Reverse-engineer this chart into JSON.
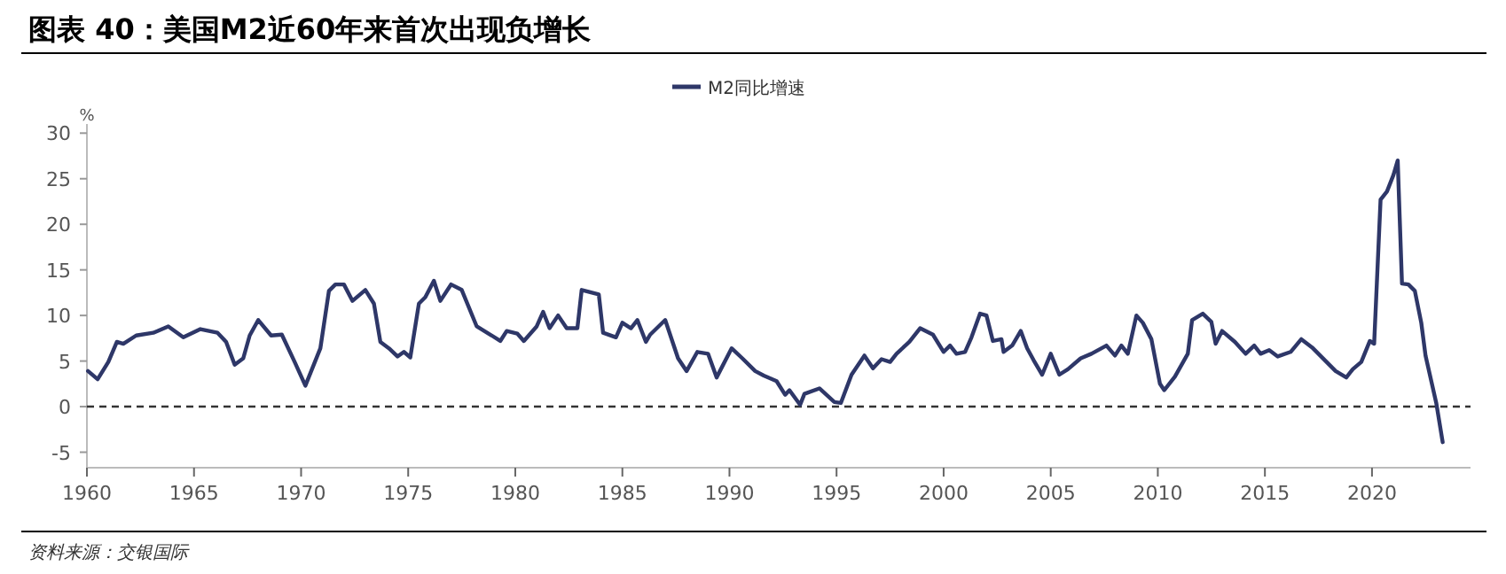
{
  "chart_data": {
    "type": "line",
    "title": "图表 40：美国M2近60年来首次出现负增长",
    "ylabel": "%",
    "annotations": [
      "资料来源：交银国际"
    ],
    "legend": "top",
    "grid": false,
    "line_style": "solid",
    "marker": "none",
    "xlim": [
      1960,
      2024.6
    ],
    "xticks": [
      1960,
      1965,
      1970,
      1975,
      1980,
      1985,
      1990,
      1995,
      2000,
      2005,
      2010,
      2015,
      2020
    ],
    "ylim": [
      -6.7,
      31
    ],
    "yticks": [
      -5,
      0,
      5,
      10,
      15,
      20,
      25,
      30
    ],
    "ref_lines": [
      {
        "axis": "y",
        "value": 0,
        "line_style": "dashed",
        "color": "#333333"
      }
    ],
    "series": [
      {
        "name": "M2同比增速",
        "color": "#2e3768",
        "x": [
          1960.05,
          1960.5,
          1961.0,
          1961.4,
          1961.7,
          1962.3,
          1963.1,
          1963.8,
          1964.5,
          1965.3,
          1966.1,
          1966.5,
          1966.9,
          1967.3,
          1967.6,
          1968.0,
          1968.6,
          1969.1,
          1969.7,
          1970.2,
          1970.9,
          1971.3,
          1971.6,
          1972.0,
          1972.4,
          1973.0,
          1973.4,
          1973.7,
          1974.1,
          1974.5,
          1974.8,
          1975.1,
          1975.5,
          1975.8,
          1976.2,
          1976.5,
          1977.0,
          1977.5,
          1978.2,
          1978.9,
          1979.3,
          1979.6,
          1980.1,
          1980.4,
          1981.0,
          1981.3,
          1981.6,
          1982.0,
          1982.4,
          1982.9,
          1983.1,
          1983.9,
          1984.1,
          1984.7,
          1985.0,
          1985.4,
          1985.7,
          1986.1,
          1986.3,
          1987.0,
          1987.6,
          1988.0,
          1988.5,
          1989.0,
          1989.4,
          1990.1,
          1990.6,
          1991.2,
          1991.6,
          1992.2,
          1992.6,
          1992.8,
          1993.3,
          1993.5,
          1994.2,
          1994.9,
          1995.2,
          1995.7,
          1996.3,
          1996.7,
          1997.1,
          1997.5,
          1997.8,
          1998.4,
          1998.9,
          1999.5,
          2000.0,
          2000.3,
          2000.6,
          2001.0,
          2001.3,
          2001.7,
          2002.0,
          2002.3,
          2002.7,
          2002.8,
          2003.2,
          2003.6,
          2003.9,
          2004.2,
          2004.6,
          2005.0,
          2005.4,
          2005.8,
          2006.4,
          2006.9,
          2007.6,
          2008.0,
          2008.3,
          2008.6,
          2009.0,
          2009.3,
          2009.7,
          2010.1,
          2010.3,
          2010.8,
          2011.4,
          2011.6,
          2012.1,
          2012.5,
          2012.7,
          2013.0,
          2013.6,
          2014.1,
          2014.5,
          2014.8,
          2015.2,
          2015.6,
          2016.2,
          2016.7,
          2017.2,
          2018.3,
          2018.8,
          2019.1,
          2019.5,
          2019.9,
          2020.1,
          2020.4,
          2020.7,
          2021.0,
          2021.2,
          2021.4,
          2021.7,
          2022.0,
          2022.3,
          2022.5,
          2023.0,
          2023.3
        ],
        "values": [
          3.9,
          3.0,
          4.9,
          7.1,
          6.9,
          7.8,
          8.1,
          8.8,
          7.6,
          8.5,
          8.1,
          7.1,
          4.6,
          5.3,
          7.8,
          9.5,
          7.8,
          7.9,
          4.9,
          2.3,
          6.4,
          12.7,
          13.4,
          13.4,
          11.6,
          12.8,
          11.3,
          7.1,
          6.4,
          5.5,
          6.0,
          5.4,
          11.3,
          12.0,
          13.8,
          11.6,
          13.4,
          12.8,
          8.8,
          7.8,
          7.2,
          8.3,
          8.0,
          7.2,
          8.8,
          10.4,
          8.6,
          10.0,
          8.6,
          8.6,
          12.8,
          12.3,
          8.1,
          7.6,
          9.2,
          8.6,
          9.5,
          7.1,
          7.9,
          9.5,
          5.3,
          3.9,
          6.0,
          5.8,
          3.2,
          6.4,
          5.3,
          3.9,
          3.4,
          2.8,
          1.3,
          1.8,
          0.2,
          1.4,
          2.0,
          0.5,
          0.4,
          3.5,
          5.6,
          4.2,
          5.2,
          4.9,
          5.8,
          7.1,
          8.6,
          7.9,
          6.0,
          6.7,
          5.8,
          6.0,
          7.6,
          10.2,
          10.0,
          7.2,
          7.4,
          6.0,
          6.7,
          8.3,
          6.4,
          5.1,
          3.5,
          5.8,
          3.5,
          4.1,
          5.3,
          5.8,
          6.7,
          5.6,
          6.7,
          5.8,
          10.0,
          9.2,
          7.4,
          2.5,
          1.8,
          3.3,
          5.8,
          9.5,
          10.2,
          9.3,
          6.9,
          8.3,
          7.1,
          5.8,
          6.7,
          5.8,
          6.2,
          5.5,
          6.0,
          7.4,
          6.5,
          3.9,
          3.2,
          4.1,
          4.9,
          7.2,
          6.9,
          22.7,
          23.6,
          25.4,
          27.0,
          13.5,
          13.4,
          12.7,
          9.2,
          5.6,
          0.4,
          -3.9
        ]
      }
    ]
  }
}
